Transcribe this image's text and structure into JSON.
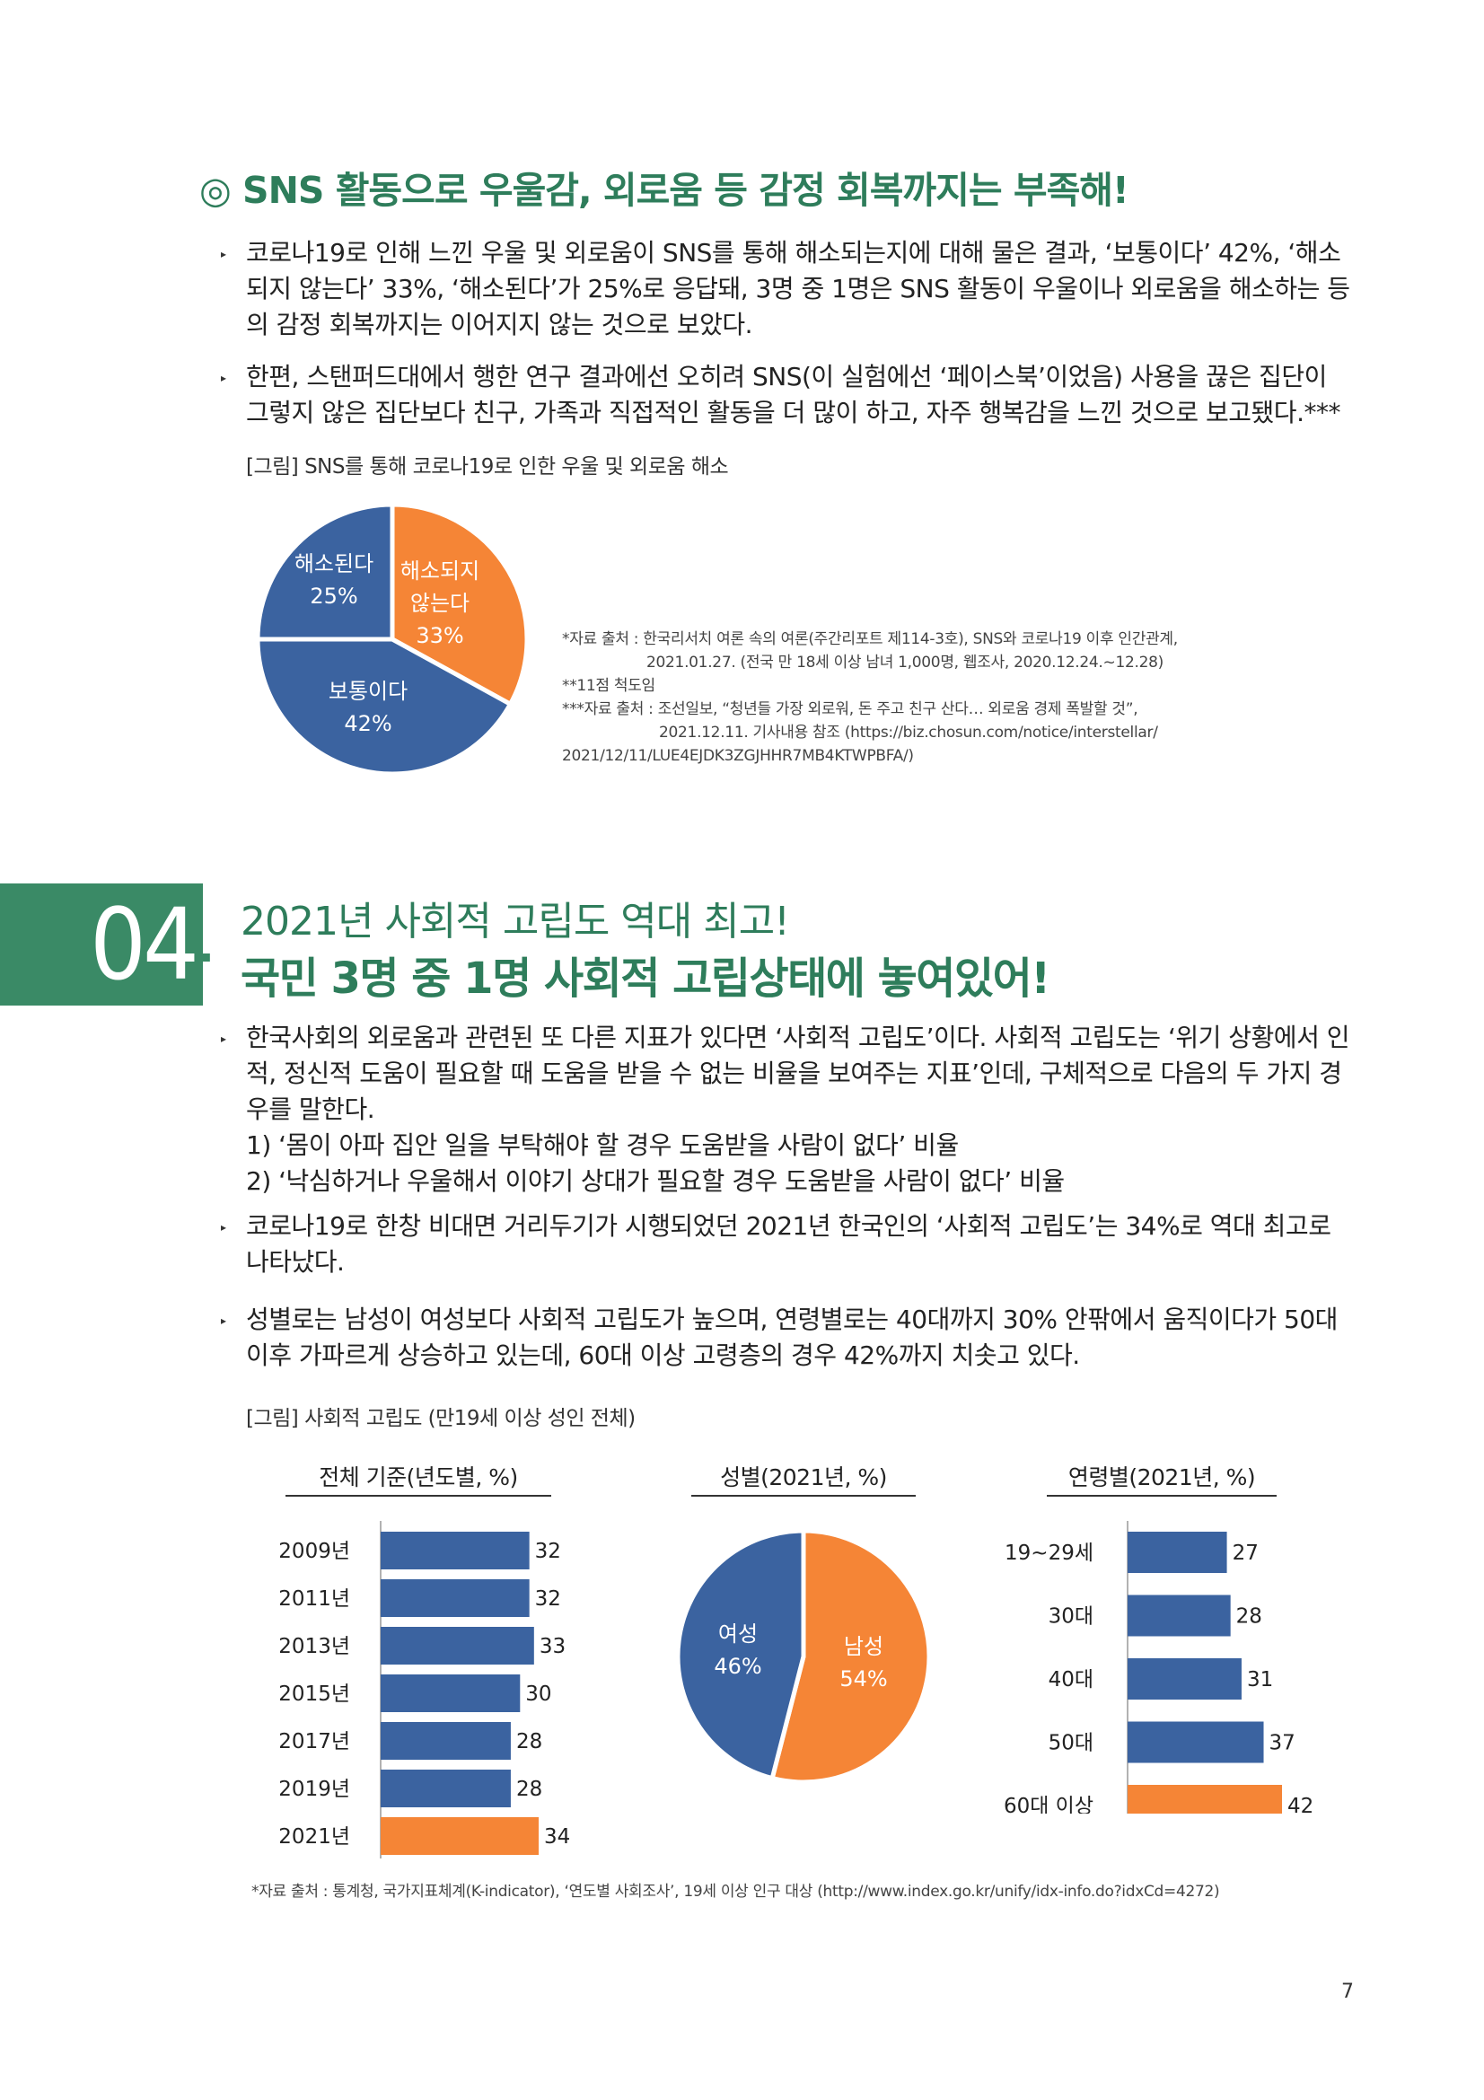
{
  "section1": {
    "title": "◎ SNS 활동으로 우울감, 외로움 등 감정 회복까지는 부족해!",
    "bullets": [
      "코로나19로 인해 느낀 우울 및 외로움이 SNS를 통해 해소되는지에 대해 물은 결과, ‘보통이다’ 42%, ‘해소되지 않는다’ 33%, ‘해소된다’가 25%로 응답돼, 3명 중 1명은 SNS 활동이 우울이나 외로움을 해소하는 등의 감정 회복까지는 이어지지 않는 것으로 보았다.",
      "한편, 스탠퍼드대에서 행한 연구 결과에선 오히려 SNS(이 실험에선 ‘페이스북’이었음) 사용을 끊은 집단이 그렇지 않은 집단보다 친구, 가족과 직접적인 활동을 더 많이 하고, 자주 행복감을 느낀 것으로 보고됐다.***"
    ],
    "figure_caption": "[그림] SNS를 통해 코로나19로 인한 우울 및 외로움 해소",
    "notes": [
      "*자료 출처 : 한국리서치 여론 속의 여론(주간리포트 제114-3호), SNS와 코로나19 이후 인간관계,",
      "2021.01.27. (전국 만 18세 이상 남녀 1,000명, 웹조사, 2020.12.24.~12.28)",
      "**11점 척도임",
      "***자료 출처 : 조선일보, “청년들 가장 외로워, 돈 주고 친구 산다… 외로움 경제 폭발할 것”,",
      "2021.12.11. 기사내용 참조 (https://biz.chosun.com/notice/interstellar/",
      "2021/12/11/LUE4EJDK3ZGJHHR7MB4KTWPBFA/)"
    ]
  },
  "section2": {
    "number": "04",
    "title_line1": "2021년 사회적 고립도 역대 최고!",
    "title_line2": "국민 3명 중 1명 사회적 고립상태에 놓여있어!",
    "bullet1": "한국사회의 외로움과 관련된 또 다른 지표가 있다면 ‘사회적 고립도’이다. 사회적 고립도는 ‘위기 상황에서 인적, 정신적 도움이 필요할 때 도움을 받을 수 없는 비율을 보여주는 지표’인데, 구체적으로 다음의 두 가지 경우를 말한다.",
    "sub1": "1) ‘몸이 아파 집안 일을 부탁해야 할 경우 도움받을 사람이 없다’ 비율",
    "sub2": "2) ‘낙심하거나 우울해서 이야기 상대가 필요할 경우 도움받을 사람이 없다’ 비율",
    "bullet2": "코로나19로 한창 비대면 거리두기가 시행되었던 2021년 한국인의 ‘사회적 고립도’는 34%로 역대 최고로 나타났다.",
    "bullet3": "성별로는 남성이 여성보다 사회적 고립도가 높으며, 연령별로는 40대까지 30% 안팎에서 움직이다가 50대 이후 가파르게 상승하고 있는데, 60대 이상 고령층의 경우 42%까지 치솟고 있다.",
    "figure_caption": "[그림] 사회적 고립도 (만19세 이상 성인 전체)",
    "source": "*자료 출처 : 통계청, 국가지표체계(K-indicator), ‘연도별 사회조사’, 19세 이상 인구 대상 (http://www.index.go.kr/unify/idx-info.do?idxCd=4272)"
  },
  "page_number": "7",
  "colors": {
    "blue": "#3b63a0",
    "orange": "#f58536",
    "green": "#2e7d5b"
  },
  "chart_data": [
    {
      "type": "pie",
      "title": "",
      "slices": [
        {
          "label": "해소되지 않는다",
          "value": 33,
          "text": "33%",
          "color": "#f58536"
        },
        {
          "label": "보통이다",
          "value": 42,
          "text": "42%",
          "color": "#3b63a0"
        },
        {
          "label": "해소된다",
          "value": 25,
          "text": "25%",
          "color": "#3b63a0"
        }
      ]
    },
    {
      "type": "bar",
      "orientation": "horizontal",
      "title": "전체 기준(년도별, %)",
      "categories": [
        "2009년",
        "2011년",
        "2013년",
        "2015년",
        "2017년",
        "2019년",
        "2021년"
      ],
      "values": [
        32,
        32,
        33,
        30,
        28,
        28,
        34
      ],
      "highlight": "2021년"
    },
    {
      "type": "pie",
      "title": "성별(2021년, %)",
      "slices": [
        {
          "label": "남성",
          "value": 54,
          "text": "54%",
          "color": "#f58536"
        },
        {
          "label": "여성",
          "value": 46,
          "text": "46%",
          "color": "#3b63a0"
        }
      ]
    },
    {
      "type": "bar",
      "orientation": "horizontal",
      "title": "연령별(2021년, %)",
      "categories": [
        "19~29세",
        "30대",
        "40대",
        "50대",
        "60대 이상"
      ],
      "values": [
        27,
        28,
        31,
        37,
        42
      ],
      "highlight": "60대 이상"
    }
  ]
}
